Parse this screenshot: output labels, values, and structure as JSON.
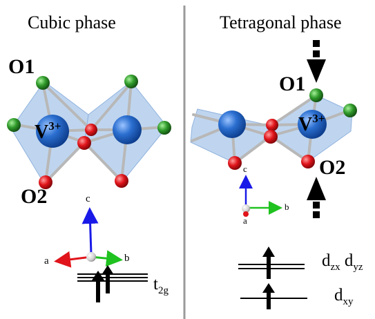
{
  "panels": {
    "cubic": {
      "title": "Cubic phase",
      "o1_label": "O1",
      "o2_label": "O2",
      "ion_base": "V",
      "ion_charge": "3+",
      "axes": {
        "a": "a",
        "b": "b",
        "c": "c"
      },
      "level": {
        "base": "t",
        "sub": "2g"
      }
    },
    "tetragonal": {
      "title": "Tetragonal phase",
      "o1_label": "O1",
      "o2_label": "O2",
      "ion_base": "V",
      "ion_charge": "3+",
      "axes": {
        "a": "a",
        "b": "b",
        "c": "c"
      },
      "level_upper": {
        "d1_base": "d",
        "d1_sub": "zx",
        "d2_base": "d",
        "d2_sub": "yz"
      },
      "level_lower": {
        "base": "d",
        "sub": "xy"
      }
    }
  },
  "colors": {
    "vanadium": "#2b6fd0",
    "oxygen_red": "#e0141a",
    "oxygen_green": "#2f9a2a",
    "octahedron": "#a9c7ea",
    "divider": "#9a9a9a",
    "axis_a": "#e0141a",
    "axis_b": "#1fc21f",
    "axis_c": "#1a1ae8"
  }
}
